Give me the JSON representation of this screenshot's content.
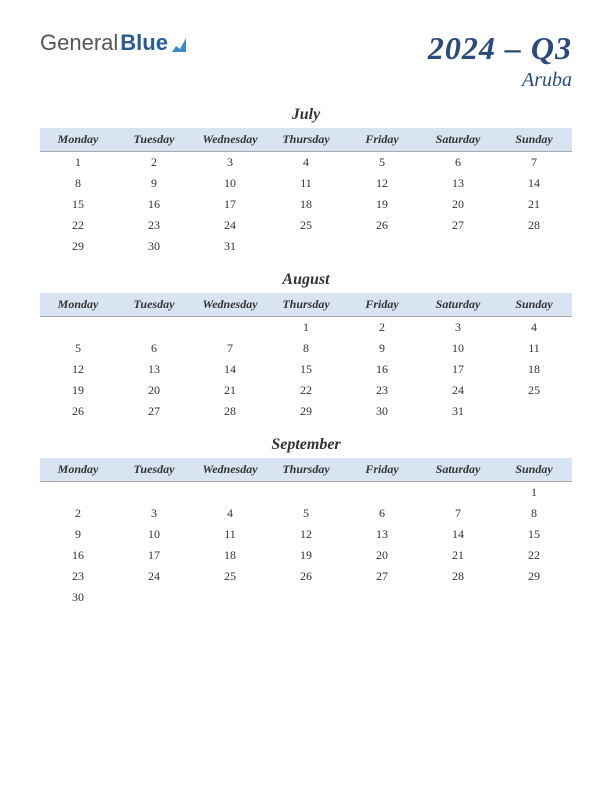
{
  "logo": {
    "text1": "General",
    "text2": "Blue",
    "icon_color": "#3a8ac4"
  },
  "header": {
    "quarter": "2024 – Q3",
    "region": "Aruba"
  },
  "colors": {
    "header_bg": "#d9e4f2",
    "title_color": "#2a4a7a",
    "border": "#aaaaaa"
  },
  "day_headers": [
    "Monday",
    "Tuesday",
    "Wednesday",
    "Thursday",
    "Friday",
    "Saturday",
    "Sunday"
  ],
  "months": [
    {
      "name": "July",
      "weeks": [
        [
          "1",
          "2",
          "3",
          "4",
          "5",
          "6",
          "7"
        ],
        [
          "8",
          "9",
          "10",
          "11",
          "12",
          "13",
          "14"
        ],
        [
          "15",
          "16",
          "17",
          "18",
          "19",
          "20",
          "21"
        ],
        [
          "22",
          "23",
          "24",
          "25",
          "26",
          "27",
          "28"
        ],
        [
          "29",
          "30",
          "31",
          "",
          "",
          "",
          ""
        ]
      ]
    },
    {
      "name": "August",
      "weeks": [
        [
          "",
          "",
          "",
          "1",
          "2",
          "3",
          "4"
        ],
        [
          "5",
          "6",
          "7",
          "8",
          "9",
          "10",
          "11"
        ],
        [
          "12",
          "13",
          "14",
          "15",
          "16",
          "17",
          "18"
        ],
        [
          "19",
          "20",
          "21",
          "22",
          "23",
          "24",
          "25"
        ],
        [
          "26",
          "27",
          "28",
          "29",
          "30",
          "31",
          ""
        ]
      ]
    },
    {
      "name": "September",
      "weeks": [
        [
          "",
          "",
          "",
          "",
          "",
          "",
          "1"
        ],
        [
          "2",
          "3",
          "4",
          "5",
          "6",
          "7",
          "8"
        ],
        [
          "9",
          "10",
          "11",
          "12",
          "13",
          "14",
          "15"
        ],
        [
          "16",
          "17",
          "18",
          "19",
          "20",
          "21",
          "22"
        ],
        [
          "23",
          "24",
          "25",
          "26",
          "27",
          "28",
          "29"
        ],
        [
          "30",
          "",
          "",
          "",
          "",
          "",
          ""
        ]
      ]
    }
  ]
}
